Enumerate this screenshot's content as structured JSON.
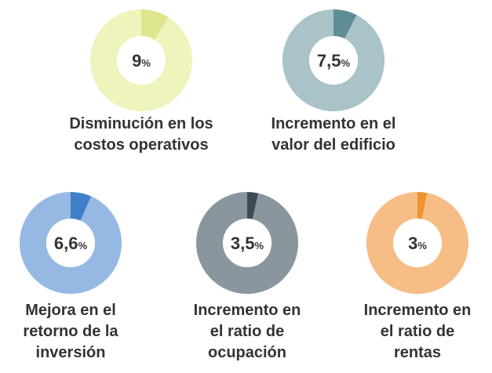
{
  "chart_data": {
    "type": "donut",
    "categories": [
      "Disminución en los costos operativos",
      "Incremento en el valor del edificio",
      "Mejora en el retorno de la inversión",
      "Incremento en el ratio de ocupación",
      "Incremento en el ratio de rentas"
    ],
    "values": [
      9,
      7.5,
      6.6,
      3.5,
      3
    ],
    "value_labels": [
      "9%",
      "7,5%",
      "6,6%",
      "3,5%",
      "3%"
    ],
    "colors": [
      "#dde68e",
      "#5f8d96",
      "#3f7fc8",
      "#3c4b56",
      "#ee9330"
    ],
    "ring_colors": [
      "#eff3bc",
      "#a9c3c8",
      "#96b9e3",
      "#8a969e",
      "#f7bd86"
    ]
  }
}
